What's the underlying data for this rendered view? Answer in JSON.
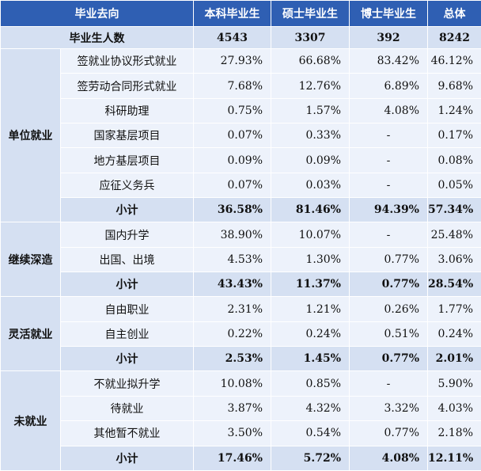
{
  "header": {
    "destination": "毕业去向",
    "bachelor": "本科毕业生",
    "master": "硕士毕业生",
    "doctor": "博士毕业生",
    "total": "总体"
  },
  "graduates": {
    "label": "毕业生人数",
    "values": [
      "4543",
      "3307",
      "392",
      "8242"
    ]
  },
  "groups": [
    {
      "category": "单位就业",
      "rows": [
        {
          "label": "签就业协议形式就业",
          "values": [
            "27.93%",
            "66.68%",
            "83.42%",
            "46.12%"
          ]
        },
        {
          "label": "签劳动合同形式就业",
          "values": [
            "7.68%",
            "12.76%",
            "6.89%",
            "9.68%"
          ]
        },
        {
          "label": "科研助理",
          "values": [
            "0.75%",
            "1.57%",
            "4.08%",
            "1.24%"
          ]
        },
        {
          "label": "国家基层项目",
          "values": [
            "0.07%",
            "0.33%",
            "-",
            "0.17%"
          ]
        },
        {
          "label": "地方基层项目",
          "values": [
            "0.09%",
            "0.09%",
            "-",
            "0.08%"
          ]
        },
        {
          "label": "应征义务兵",
          "values": [
            "0.07%",
            "0.03%",
            "-",
            "0.05%"
          ]
        }
      ],
      "subtotal": {
        "label": "小计",
        "values": [
          "36.58%",
          "81.46%",
          "94.39%",
          "57.34%"
        ]
      }
    },
    {
      "category": "继续深造",
      "rows": [
        {
          "label": "国内升学",
          "values": [
            "38.90%",
            "10.07%",
            "-",
            "25.48%"
          ]
        },
        {
          "label": "出国、出境",
          "values": [
            "4.53%",
            "1.30%",
            "0.77%",
            "3.06%"
          ]
        }
      ],
      "subtotal": {
        "label": "小计",
        "values": [
          "43.43%",
          "11.37%",
          "0.77%",
          "28.54%"
        ]
      }
    },
    {
      "category": "灵活就业",
      "rows": [
        {
          "label": "自由职业",
          "values": [
            "2.31%",
            "1.21%",
            "0.26%",
            "1.77%"
          ]
        },
        {
          "label": "自主创业",
          "values": [
            "0.22%",
            "0.24%",
            "0.51%",
            "0.24%"
          ]
        }
      ],
      "subtotal": {
        "label": "小计",
        "values": [
          "2.53%",
          "1.45%",
          "0.77%",
          "2.01%"
        ]
      }
    },
    {
      "category": "未就业",
      "rows": [
        {
          "label": "不就业拟升学",
          "values": [
            "10.08%",
            "0.85%",
            "-",
            "5.90%"
          ]
        },
        {
          "label": "待就业",
          "values": [
            "3.87%",
            "4.32%",
            "3.32%",
            "4.03%"
          ]
        },
        {
          "label": "其他暂不就业",
          "values": [
            "3.50%",
            "0.54%",
            "0.77%",
            "2.18%"
          ]
        }
      ],
      "subtotal": {
        "label": "小计",
        "values": [
          "17.46%",
          "5.72%",
          "4.08%",
          "12.11%"
        ]
      }
    }
  ],
  "colors": {
    "header_bg": "#2f5fb3",
    "category_bg": "#d5e0f2",
    "stripe_bg": "#edf2fb",
    "row_bg": "#ffffff"
  }
}
